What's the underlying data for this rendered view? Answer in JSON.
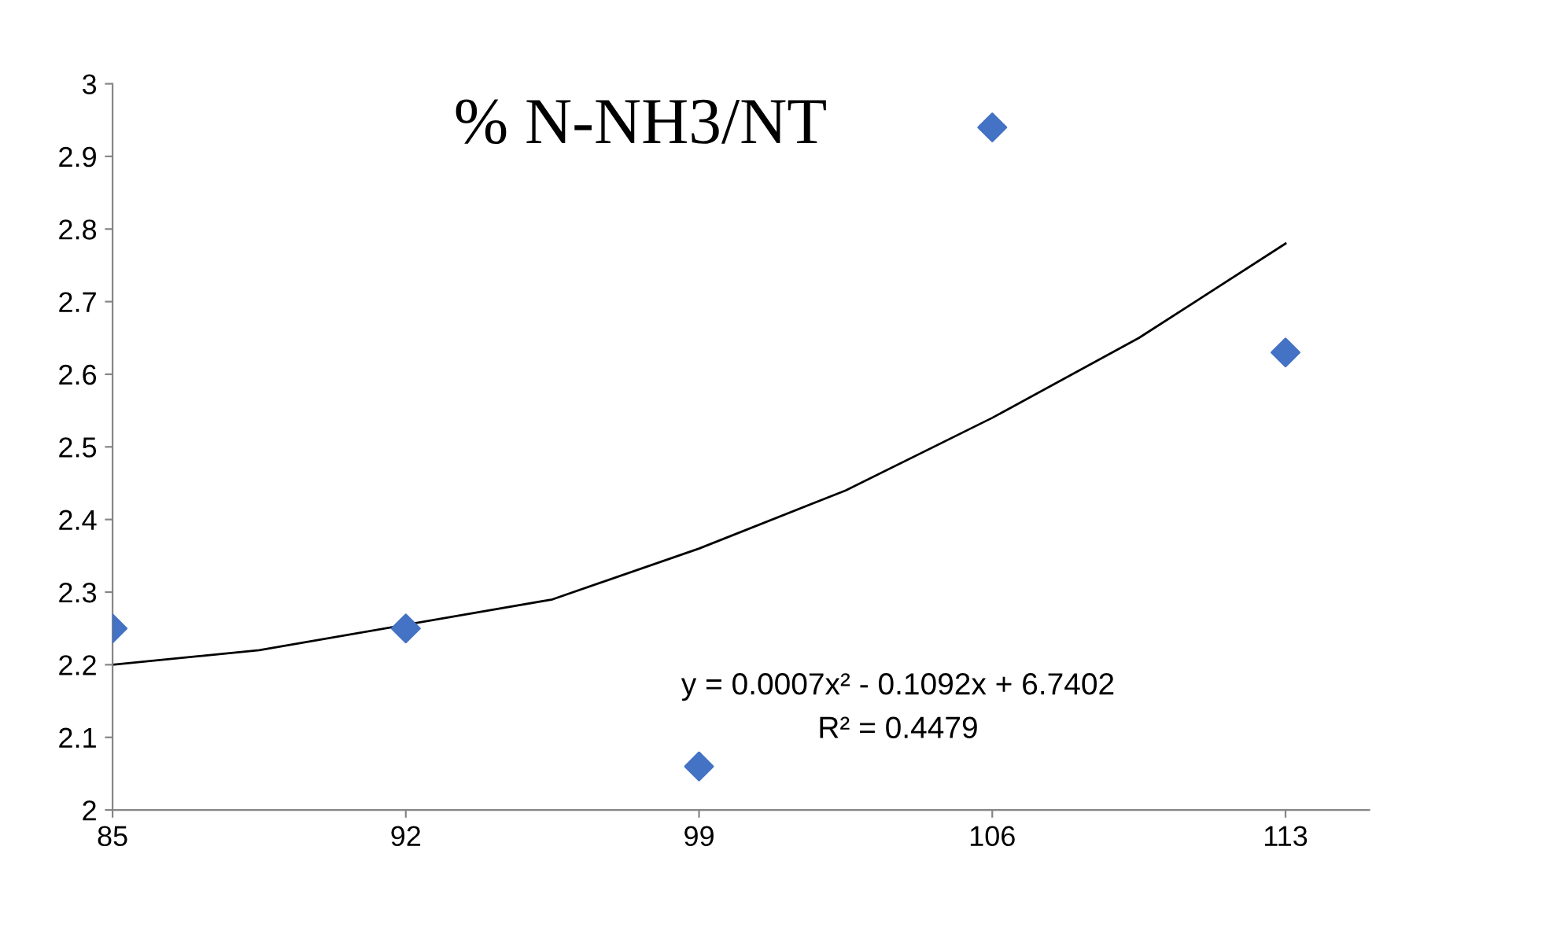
{
  "chart_data": {
    "type": "scatter",
    "title": "% N-NH3/NT",
    "series": [
      {
        "color": "#4472c4",
        "marker": "diamond",
        "x": [
          85,
          92,
          99,
          106,
          113
        ],
        "values": [
          2.25,
          2.25,
          2.06,
          2.94,
          2.63
        ]
      },
      {
        "type": "line",
        "color": "#000000",
        "marker": "none",
        "line_style": "solid",
        "x": [
          85,
          88.5,
          95.5,
          99,
          102.5,
          106,
          109.5,
          113
        ],
        "values": [
          2.2,
          2.22,
          2.29,
          2.36,
          2.44,
          2.54,
          2.65,
          2.78
        ]
      }
    ],
    "xlim": [
      85,
      115
    ],
    "xticks": [
      85,
      92,
      99,
      106,
      113
    ],
    "ylim": [
      2,
      3
    ],
    "yticks": [
      2,
      2.1,
      2.2,
      2.3,
      2.4,
      2.5,
      2.6,
      2.7,
      2.8,
      2.9,
      3
    ],
    "grid": false,
    "legend": false,
    "annotations": [
      "y = 0.0007x² - 0.1092x + 6.7402",
      "R² = 0.4479"
    ]
  }
}
